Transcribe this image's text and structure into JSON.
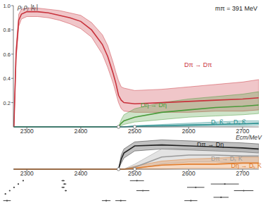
{
  "chart_data": [
    {
      "type": "line",
      "y_label": "ρᵢ ρⱼ |tᵢⱼ|",
      "annotation": "mπ = 391 MeV",
      "x_label": "Ecm/MeV",
      "x": [
        2276,
        2280,
        2285,
        2290,
        2300,
        2320,
        2340,
        2360,
        2380,
        2400,
        2420,
        2440,
        2450,
        2460,
        2465,
        2470,
        2475,
        2480,
        2500,
        2550,
        2600,
        2650,
        2700,
        2730
      ],
      "xlim": [
        2275,
        2730
      ],
      "xticks": [
        2300,
        2400,
        2500,
        2600,
        2700
      ],
      "ylim": [
        0,
        1
      ],
      "yticks": [
        0.2,
        0.4,
        0.6,
        0.8,
        {
          "value": 1,
          "label": "1.0"
        }
      ],
      "thresholds": [
        2470,
        2500
      ],
      "series": [
        {
          "name": "Dπ → Dπ",
          "color": "#c8323c",
          "values": [
            0,
            0.6,
            0.88,
            0.93,
            0.95,
            0.95,
            0.94,
            0.92,
            0.9,
            0.87,
            0.8,
            0.68,
            0.58,
            0.44,
            0.36,
            0.26,
            0.22,
            0.2,
            0.19,
            0.2,
            0.21,
            0.22,
            0.23,
            0.24
          ],
          "lower": [
            0,
            0.55,
            0.83,
            0.89,
            0.91,
            0.91,
            0.9,
            0.88,
            0.85,
            0.81,
            0.74,
            0.6,
            0.49,
            0.36,
            0.28,
            0.2,
            0.15,
            0.13,
            0.12,
            0.12,
            0.12,
            0.13,
            0.13,
            0.14
          ],
          "upper": [
            0,
            0.65,
            0.93,
            0.97,
            0.98,
            0.98,
            0.97,
            0.96,
            0.94,
            0.92,
            0.86,
            0.76,
            0.67,
            0.53,
            0.45,
            0.38,
            0.33,
            0.32,
            0.3,
            0.31,
            0.33,
            0.35,
            0.37,
            0.39
          ]
        },
        {
          "name": "Dη → Dη",
          "color": "#4a9a3a",
          "values": [
            0,
            0,
            0,
            0,
            0,
            0,
            0,
            0,
            0,
            0,
            0,
            0,
            0,
            0,
            0,
            0,
            0.03,
            0.05,
            0.08,
            0.12,
            0.14,
            0.16,
            0.17,
            0.18
          ],
          "lower": [
            0,
            0,
            0,
            0,
            0,
            0,
            0,
            0,
            0,
            0,
            0,
            0,
            0,
            0,
            0,
            0,
            0.01,
            0.02,
            0.04,
            0.06,
            0.08,
            0.09,
            0.1,
            0.11
          ],
          "upper": [
            0,
            0,
            0,
            0,
            0,
            0,
            0,
            0,
            0,
            0,
            0,
            0,
            0,
            0,
            0,
            0,
            0.06,
            0.1,
            0.15,
            0.2,
            0.23,
            0.25,
            0.27,
            0.29
          ]
        },
        {
          "name": "Dₛ K̄ → Dₛ K̄",
          "color": "#2a8f8f",
          "values": [
            0,
            0,
            0,
            0,
            0,
            0,
            0,
            0,
            0,
            0,
            0,
            0,
            0,
            0,
            0,
            0,
            0,
            0,
            0.005,
            0.01,
            0.015,
            0.02,
            0.025,
            0.03
          ],
          "lower": [
            0,
            0,
            0,
            0,
            0,
            0,
            0,
            0,
            0,
            0,
            0,
            0,
            0,
            0,
            0,
            0,
            0,
            0,
            0,
            0,
            0.005,
            0.01,
            0.01,
            0.015
          ],
          "upper": [
            0,
            0,
            0,
            0,
            0,
            0,
            0,
            0,
            0,
            0,
            0,
            0,
            0,
            0,
            0,
            0,
            0,
            0,
            0.01,
            0.02,
            0.03,
            0.04,
            0.05,
            0.05
          ]
        }
      ]
    },
    {
      "type": "line",
      "x": [
        2276,
        2280,
        2285,
        2290,
        2300,
        2320,
        2340,
        2360,
        2380,
        2400,
        2420,
        2440,
        2450,
        2460,
        2465,
        2470,
        2475,
        2480,
        2500,
        2550,
        2600,
        2650,
        2700,
        2730
      ],
      "xlim": [
        2275,
        2730
      ],
      "xticks": [
        2300,
        2400,
        2500,
        2600,
        2700
      ],
      "ylim": [
        0,
        0.3
      ],
      "tick_labels": "x",
      "thresholds": [
        2470,
        2500
      ],
      "series": [
        {
          "name": "Dπ → Dη",
          "color": "#222222",
          "values": [
            0,
            0,
            0,
            0,
            0,
            0,
            0,
            0,
            0,
            0,
            0,
            0,
            0,
            0,
            0,
            0,
            0.1,
            0.16,
            0.23,
            0.24,
            0.23,
            0.22,
            0.21,
            0.2
          ],
          "lower": [
            0,
            0,
            0,
            0,
            0,
            0,
            0,
            0,
            0,
            0,
            0,
            0,
            0,
            0,
            0,
            0,
            0.06,
            0.11,
            0.18,
            0.2,
            0.19,
            0.18,
            0.17,
            0.16
          ],
          "upper": [
            0,
            0,
            0,
            0,
            0,
            0,
            0,
            0,
            0,
            0,
            0,
            0,
            0,
            0,
            0,
            0,
            0.14,
            0.2,
            0.27,
            0.29,
            0.28,
            0.27,
            0.26,
            0.25
          ]
        },
        {
          "name": "Dπ → Dₛ K̄",
          "color": "#9a9a9a",
          "values": [
            0,
            0,
            0,
            0,
            0,
            0,
            0,
            0,
            0,
            0,
            0,
            0,
            0,
            0,
            0,
            0,
            0,
            0,
            0.02,
            0.12,
            0.14,
            0.14,
            0.13,
            0.13
          ],
          "lower": [
            0,
            0,
            0,
            0,
            0,
            0,
            0,
            0,
            0,
            0,
            0,
            0,
            0,
            0,
            0,
            0,
            0,
            0,
            0,
            0.05,
            0.07,
            0.07,
            0.06,
            0.06
          ],
          "upper": [
            0,
            0,
            0,
            0,
            0,
            0,
            0,
            0,
            0,
            0,
            0,
            0,
            0,
            0,
            0,
            0,
            0,
            0,
            0.05,
            0.2,
            0.21,
            0.2,
            0.2,
            0.19
          ]
        },
        {
          "name": "Dη → Dₛ K̄",
          "color": "#e07b2a",
          "values": [
            0,
            0,
            0,
            0,
            0,
            0,
            0,
            0,
            0,
            0,
            0,
            0,
            0,
            0,
            0,
            0,
            0,
            0,
            0.01,
            0.04,
            0.05,
            0.05,
            0.06,
            0.06
          ],
          "lower": [
            0,
            0,
            0,
            0,
            0,
            0,
            0,
            0,
            0,
            0,
            0,
            0,
            0,
            0,
            0,
            0,
            0,
            0,
            0,
            0,
            0.01,
            0.01,
            0.01,
            0.01
          ],
          "upper": [
            0,
            0,
            0,
            0,
            0,
            0,
            0,
            0,
            0,
            0,
            0,
            0,
            0,
            0,
            0,
            0,
            0,
            0,
            0.03,
            0.08,
            0.1,
            0.11,
            0.12,
            0.12
          ]
        }
      ]
    },
    {
      "type": "scatter",
      "color": "#444444",
      "tick_labels": false,
      "xlim": [
        2250,
        2730
      ],
      "ylim": [
        -0.5,
        6.5
      ],
      "x": [
        2260,
        2268,
        2276,
        2284,
        2293,
        2263,
        2367,
        2370,
        2367,
        2372,
        2504,
        2515,
        2447,
        2474,
        2613,
        2667,
        2660,
        2702,
        2604
      ],
      "xerr": [
        1,
        1,
        1,
        1,
        1,
        7,
        3,
        3,
        3,
        2,
        13,
        12,
        8,
        10,
        16,
        26,
        14,
        18,
        12
      ],
      "values": [
        2,
        3,
        4,
        5,
        6,
        0,
        6,
        5,
        4,
        3,
        6,
        3,
        0,
        0,
        4,
        5,
        1,
        3,
        0
      ]
    }
  ]
}
